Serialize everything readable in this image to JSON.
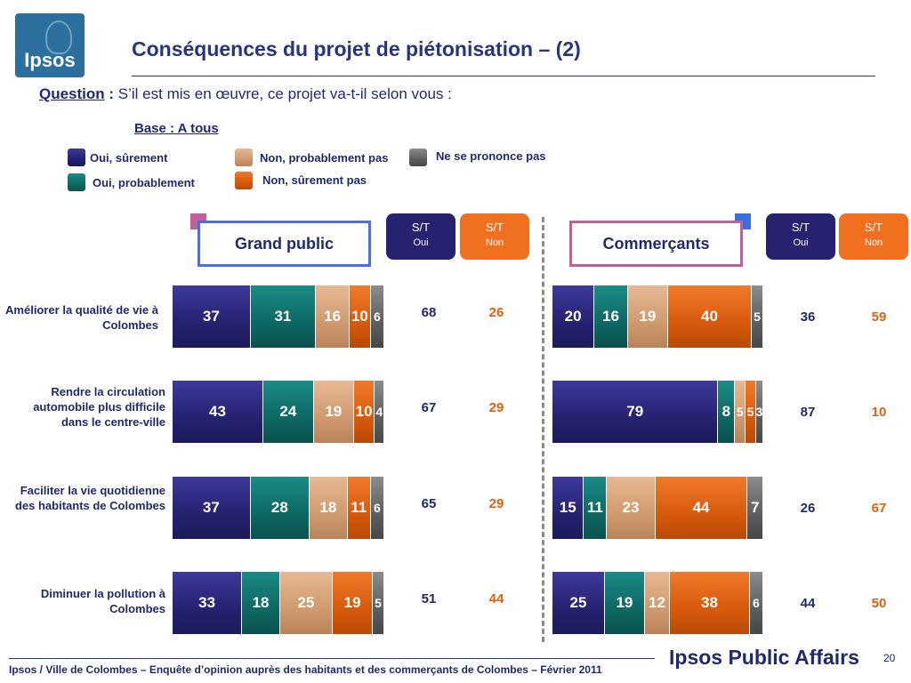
{
  "logo": {
    "text": "Ipsos"
  },
  "title": "Conséquences du projet de piétonisation – (2)",
  "question": {
    "label": "Question",
    "colon": " :",
    "text": " S’il est mis en œuvre, ce projet va-t-il selon vous :"
  },
  "base": "Base : A tous",
  "colors": {
    "s1": "#252270",
    "s2": "#0e6863",
    "s3": "#cf9a6f",
    "s4": "#d85a0c",
    "s5": "#5e5e5e",
    "grand_public_border": "#4a6fe0",
    "commercants_border": "#c0609a",
    "st_oui": "#252270",
    "st_non": "#f07020"
  },
  "legend": [
    {
      "label": "Oui, sûrement",
      "color": "#252270"
    },
    {
      "label": "Oui, probablement",
      "color": "#0e6863"
    },
    {
      "label": "Non, probablement pas",
      "color": "#cf9a6f"
    },
    {
      "label": "Non, sûrement pas",
      "color": "#d85a0c"
    },
    {
      "label": "Ne se prononce pas",
      "color": "#5e5e5e"
    }
  ],
  "groups": {
    "grand_public": {
      "title": "Grand public",
      "st_oui": {
        "a": "S/T",
        "b": "Oui"
      },
      "st_non": {
        "a": "S/T",
        "b": "Non"
      }
    },
    "commercants": {
      "title": "Commerçants",
      "st_oui": {
        "a": "S/T",
        "b": "Oui"
      },
      "st_non": {
        "a": "S/T",
        "b": "Non"
      }
    }
  },
  "footer": "Ipsos / Ville de Colombes – Enquête d’opinion auprès des habitants et des commerçants de Colombes – Février 2011",
  "brand": "Ipsos Public Affairs",
  "page_number": "20",
  "chart_data": {
    "type": "bar",
    "orientation": "horizontal-stacked-100",
    "categories": [
      "Améliorer la qualité de vie à Colombes",
      "Rendre la circulation automobile plus difficile dans le centre-ville",
      "Faciliter la vie quotidienne des habitants de Colombes",
      "Diminuer la pollution à Colombes"
    ],
    "series_names": [
      "Oui, sûrement",
      "Oui, probablement",
      "Non, probablement pas",
      "Non, sûrement pas",
      "Ne se prononce pas"
    ],
    "grand_public": {
      "values": [
        [
          37,
          31,
          16,
          10,
          6
        ],
        [
          43,
          24,
          19,
          10,
          4
        ],
        [
          37,
          28,
          18,
          11,
          6
        ],
        [
          33,
          18,
          25,
          19,
          5
        ]
      ],
      "st_oui": [
        68,
        67,
        65,
        51
      ],
      "st_non": [
        26,
        29,
        29,
        44
      ]
    },
    "commercants": {
      "values": [
        [
          20,
          16,
          19,
          40,
          5
        ],
        [
          79,
          8,
          5,
          5,
          3
        ],
        [
          15,
          11,
          23,
          44,
          7
        ],
        [
          25,
          19,
          12,
          38,
          6
        ]
      ],
      "st_oui": [
        36,
        87,
        26,
        44
      ],
      "st_non": [
        59,
        10,
        67,
        50
      ]
    }
  }
}
